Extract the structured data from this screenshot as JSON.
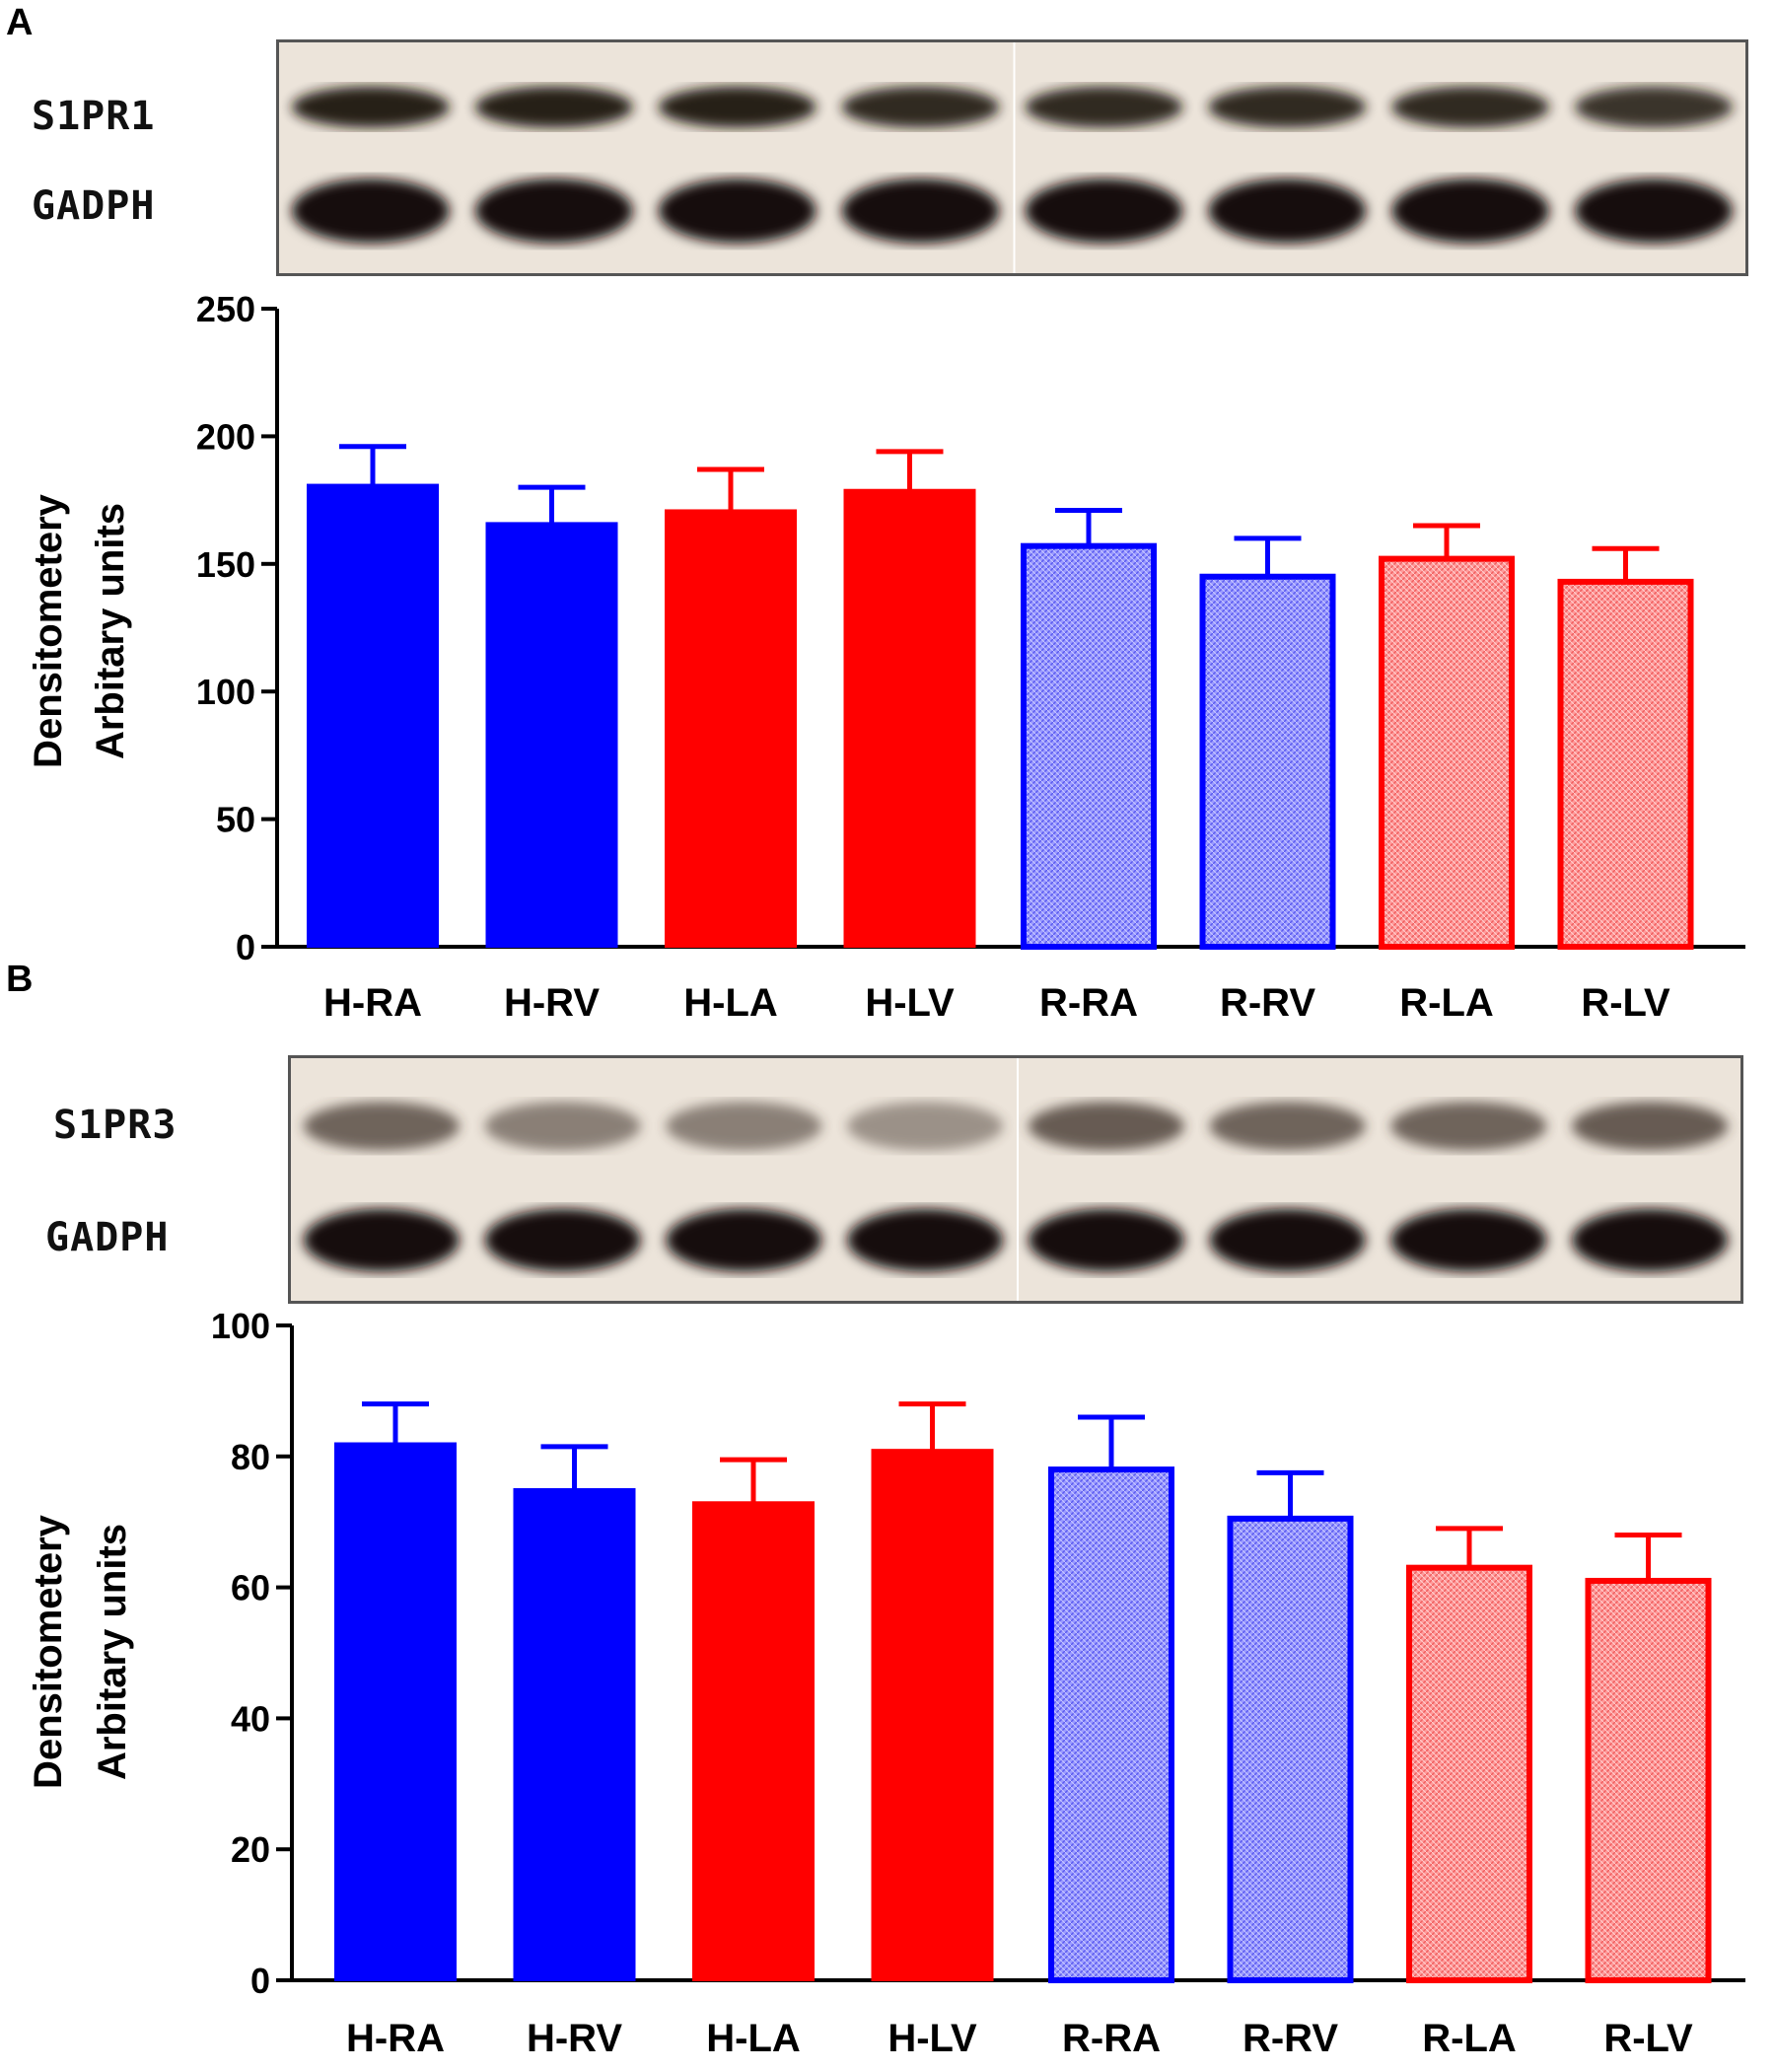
{
  "panels": [
    {
      "letter": "A",
      "blot": {
        "target_label": "S1PR1",
        "loading_label": "GADPH"
      },
      "chart_data": {
        "type": "bar",
        "categories": [
          "H-RA",
          "H-RV",
          "H-LA",
          "H-LV",
          "R-RA",
          "R-RV",
          "R-LA",
          "R-LV"
        ],
        "values": [
          181,
          166,
          171,
          179,
          157,
          145,
          152,
          143
        ],
        "errors": [
          15,
          14,
          16,
          15,
          14,
          15,
          13,
          13
        ],
        "ylim": [
          0,
          250
        ],
        "yticks": [
          0,
          50,
          100,
          150,
          200,
          250
        ],
        "ylabel_line1": "Densitometery",
        "ylabel_line2": "Arbitary units",
        "colors": [
          "#0000ff",
          "#0000ff",
          "#ff0000",
          "#ff0000",
          "#8080ff",
          "#8080ff",
          "#ff8080",
          "#ff8080"
        ],
        "hatched": [
          false,
          false,
          false,
          false,
          true,
          true,
          true,
          true
        ]
      }
    },
    {
      "letter": "B",
      "blot": {
        "target_label": "S1PR3",
        "loading_label": "GADPH"
      },
      "chart_data": {
        "type": "bar",
        "categories": [
          "H-RA",
          "H-RV",
          "H-LA",
          "H-LV",
          "R-RA",
          "R-RV",
          "R-LA",
          "R-LV"
        ],
        "values": [
          82,
          75,
          73,
          81,
          78,
          70.5,
          63,
          61
        ],
        "errors": [
          6,
          6.5,
          6.5,
          7,
          8,
          7,
          6,
          7
        ],
        "ylim": [
          0,
          100
        ],
        "yticks": [
          0,
          20,
          40,
          60,
          80,
          100
        ],
        "ylabel_line1": "Densitometery",
        "ylabel_line2": "Arbitary units",
        "colors": [
          "#0000ff",
          "#0000ff",
          "#ff0000",
          "#ff0000",
          "#8080ff",
          "#8080ff",
          "#ff8080",
          "#ff8080"
        ],
        "hatched": [
          false,
          false,
          false,
          false,
          true,
          true,
          true,
          true
        ]
      }
    }
  ]
}
